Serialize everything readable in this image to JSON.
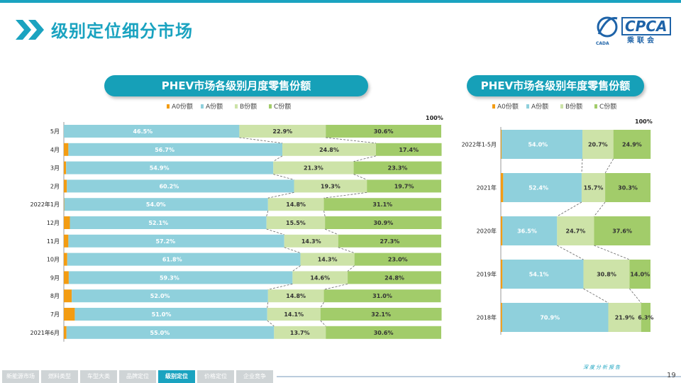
{
  "page": {
    "title": "级别定位细分市场",
    "page_number": "19",
    "slogan": "深度分析报告",
    "logo": {
      "brand": "CPCA",
      "cn": "乘联会",
      "tag": "CADA"
    },
    "colors": {
      "accent": "#1aa3c0",
      "A0": "#f39c12",
      "A": "#8fd0dc",
      "B": "#cde3a8",
      "C": "#a2cc6a"
    },
    "footer_tabs": [
      {
        "label": "新能源市场",
        "active": false
      },
      {
        "label": "燃料类型",
        "active": false
      },
      {
        "label": "车型大类",
        "active": false
      },
      {
        "label": "品牌定位",
        "active": false
      },
      {
        "label": "级别定位",
        "active": true
      },
      {
        "label": "价格定位",
        "active": false
      },
      {
        "label": "企业竞争",
        "active": false
      }
    ]
  },
  "chart_data": [
    {
      "type": "bar",
      "stacked": "percent",
      "orientation": "horizontal",
      "title": "PHEV市场各级别月度零售份额",
      "legend_position": "top-left",
      "top_label": "100%",
      "categories": [
        "5月",
        "4月",
        "3月",
        "2月",
        "2022年1月",
        "12月",
        "11月",
        "10月",
        "9月",
        "8月",
        "7月",
        "2021年6月"
      ],
      "series": [
        {
          "name": "A0份额",
          "color": "#f39c12",
          "values": [
            0.0,
            1.2,
            0.6,
            0.8,
            0.1,
            1.6,
            1.2,
            0.9,
            1.3,
            2.1,
            2.9,
            0.7
          ],
          "labels": [
            "0.0%",
            "1.2%",
            "0.6%",
            "0.8%",
            "0.1%",
            "1.6%",
            "1.2%",
            "0.9%",
            "1.3%",
            "2.1%",
            "2.9%",
            "0.7%"
          ]
        },
        {
          "name": "A份额",
          "color": "#8fd0dc",
          "values": [
            46.5,
            56.7,
            54.9,
            60.2,
            54.0,
            52.1,
            57.2,
            61.8,
            59.3,
            52.0,
            51.0,
            55.0
          ],
          "labels": [
            "46.5%",
            "56.7%",
            "54.9%",
            "60.2%",
            "54.0%",
            "52.1%",
            "57.2%",
            "61.8%",
            "59.3%",
            "52.0%",
            "51.0%",
            "55.0%"
          ]
        },
        {
          "name": "B份额",
          "color": "#cde3a8",
          "values": [
            22.9,
            24.8,
            21.3,
            19.3,
            14.8,
            15.5,
            14.3,
            14.3,
            14.6,
            14.8,
            14.1,
            13.7
          ],
          "labels": [
            "22.9%",
            "24.8%",
            "21.3%",
            "19.3%",
            "14.8%",
            "15.5%",
            "14.3%",
            "14.3%",
            "14.6%",
            "14.8%",
            "14.1%",
            "13.7%"
          ]
        },
        {
          "name": "C份额",
          "color": "#a2cc6a",
          "values": [
            30.6,
            17.4,
            23.3,
            19.7,
            31.1,
            30.9,
            27.3,
            23.0,
            24.8,
            31.0,
            32.1,
            30.6
          ],
          "labels": [
            "30.6%",
            "17.4%",
            "23.3%",
            "19.7%",
            "31.1%",
            "30.9%",
            "27.3%",
            "23.0%",
            "24.8%",
            "31.0%",
            "32.1%",
            "30.6%"
          ]
        }
      ]
    },
    {
      "type": "bar",
      "stacked": "percent",
      "orientation": "horizontal",
      "title": "PHEV市场各级别年度零售份额",
      "legend_position": "top-left",
      "top_label": "100%",
      "categories": [
        "2022年1-5月",
        "2021年",
        "2020年",
        "2019年",
        "2018年"
      ],
      "series": [
        {
          "name": "A0份额",
          "color": "#f39c12",
          "values": [
            0.5,
            1.6,
            1.1,
            1.1,
            0.9
          ],
          "labels": [
            "0.5%",
            "1.6%",
            "1.1%",
            "1.1%",
            "0.9%"
          ]
        },
        {
          "name": "A份额",
          "color": "#8fd0dc",
          "values": [
            54.0,
            52.4,
            36.5,
            54.1,
            70.9
          ],
          "labels": [
            "54.0%",
            "52.4%",
            "36.5%",
            "54.1%",
            "70.9%"
          ]
        },
        {
          "name": "B份额",
          "color": "#cde3a8",
          "values": [
            20.7,
            15.7,
            24.7,
            30.8,
            21.9
          ],
          "labels": [
            "20.7%",
            "15.7%",
            "24.7%",
            "30.8%",
            "21.9%"
          ]
        },
        {
          "name": "C份额",
          "color": "#a2cc6a",
          "values": [
            24.9,
            30.3,
            37.6,
            14.0,
            6.3
          ],
          "labels": [
            "24.9%",
            "30.3%",
            "37.6%",
            "14.0%",
            "6.3%"
          ]
        }
      ]
    }
  ]
}
